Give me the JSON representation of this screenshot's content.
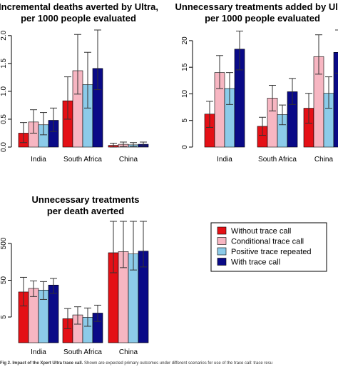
{
  "colors": {
    "without": "#e41016",
    "conditional": "#f7b6c2",
    "positive": "#8ccbe9",
    "with": "#0a0a87"
  },
  "legend": {
    "position": "right",
    "items": [
      {
        "label": "Without trace call",
        "color": "#e41016"
      },
      {
        "label": "Conditional trace call",
        "color": "#f7b6c2"
      },
      {
        "label": "Positive trace repeated",
        "color": "#8ccbe9"
      },
      {
        "label": "With trace call",
        "color": "#0a0a87"
      }
    ]
  },
  "caption": {
    "label": "Fig 2. Impact of the Xpert Ultra trace call.",
    "text": "Shown are expected primary outcomes under different scenarios for use of the trace call: trace resu"
  },
  "chart_data": [
    {
      "type": "bar",
      "title_lines": [
        "Incremental deaths averted by Ultra,",
        "per 1000 people evaluated"
      ],
      "categories": [
        "India",
        "South Africa",
        "China"
      ],
      "ylim": [
        0,
        2.1
      ],
      "yticks": [
        "0.0",
        "0.5",
        "1.0",
        "1.5",
        "2.0"
      ],
      "ytick_values": [
        0,
        0.5,
        1.0,
        1.5,
        2.0
      ],
      "scale": "linear",
      "series": [
        {
          "name": "Without trace call",
          "values": [
            0.25,
            0.83,
            0.03
          ],
          "low": [
            0.08,
            0.5,
            0.0
          ],
          "high": [
            0.44,
            1.26,
            0.07
          ]
        },
        {
          "name": "Conditional trace call",
          "values": [
            0.45,
            1.37,
            0.05
          ],
          "low": [
            0.25,
            0.95,
            0.01
          ],
          "high": [
            0.67,
            2.02,
            0.09
          ]
        },
        {
          "name": "Positive trace repeated",
          "values": [
            0.4,
            1.12,
            0.04
          ],
          "low": [
            0.22,
            0.7,
            0.01
          ],
          "high": [
            0.62,
            1.7,
            0.08
          ]
        },
        {
          "name": "With trace call",
          "values": [
            0.48,
            1.41,
            0.05
          ],
          "low": [
            0.28,
            1.03,
            0.02
          ],
          "high": [
            0.7,
            2.1,
            0.09
          ]
        }
      ]
    },
    {
      "type": "bar",
      "title_lines": [
        "Unnecessary treatments added by Ultra",
        "per 1000 people evaluated"
      ],
      "categories": [
        "India",
        "South Africa",
        "China"
      ],
      "ylim": [
        0,
        22
      ],
      "yticks": [
        "0",
        "5",
        "10",
        "15",
        "20"
      ],
      "ytick_values": [
        0,
        5,
        10,
        15,
        20
      ],
      "scale": "linear",
      "series": [
        {
          "name": "Without trace call",
          "values": [
            6.2,
            3.9,
            7.3
          ],
          "low": [
            3.7,
            2.2,
            4.5
          ],
          "high": [
            8.6,
            5.6,
            10.1
          ]
        },
        {
          "name": "Conditional trace call",
          "values": [
            14.0,
            9.2,
            17.0
          ],
          "low": [
            11.0,
            6.8,
            13.7
          ],
          "high": [
            17.2,
            11.6,
            21.1
          ]
        },
        {
          "name": "Positive trace repeated",
          "values": [
            11.0,
            6.1,
            10.1
          ],
          "low": [
            8.0,
            4.2,
            7.3
          ],
          "high": [
            14.0,
            7.9,
            13.2
          ]
        },
        {
          "name": "With trace call",
          "values": [
            18.4,
            10.4,
            17.8
          ],
          "low": [
            14.5,
            8.0,
            13.9
          ],
          "high": [
            21.8,
            12.9,
            22.0
          ]
        }
      ]
    },
    {
      "type": "bar",
      "title_lines": [
        "Unnecessary treatments",
        "per death averted"
      ],
      "categories": [
        "India",
        "South Africa",
        "China"
      ],
      "scale": "log",
      "ylim": [
        1,
        2000
      ],
      "yticks": [
        "5",
        "50",
        "500"
      ],
      "ytick_values": [
        5,
        50,
        500
      ],
      "series": [
        {
          "name": "Without trace call",
          "values": [
            24,
            4.5,
            280
          ],
          "low": [
            10,
            2.4,
            80
          ],
          "high": [
            60,
            8.5,
            2000
          ]
        },
        {
          "name": "Conditional trace call",
          "values": [
            30,
            5.7,
            300
          ],
          "low": [
            18,
            3.2,
            110
          ],
          "high": [
            48,
            9.5,
            2000
          ]
        },
        {
          "name": "Positive trace repeated",
          "values": [
            27,
            4.9,
            260
          ],
          "low": [
            15,
            2.8,
            95
          ],
          "high": [
            46,
            8.8,
            2000
          ]
        },
        {
          "name": "With trace call",
          "values": [
            37,
            6.4,
            310
          ],
          "low": [
            22,
            3.8,
            115
          ],
          "high": [
            56,
            10.5,
            2000
          ]
        }
      ]
    }
  ]
}
